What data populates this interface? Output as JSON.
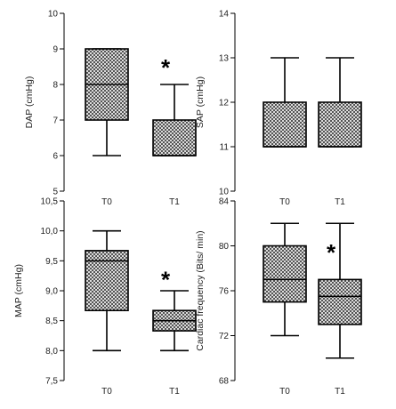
{
  "chart_data": [
    {
      "type": "box",
      "ylabel": "DAP (cmHg)",
      "categories": [
        "T0",
        "T1"
      ],
      "ylim": [
        5,
        10
      ],
      "yticks": [
        5,
        6,
        7,
        8,
        9,
        10
      ],
      "ytick_labels": [
        "5",
        "6",
        "7",
        "8",
        "9",
        "10"
      ],
      "boxes": [
        {
          "category": "T0",
          "min": 6,
          "q1": 7,
          "median": 8,
          "q3": 9,
          "max": 9
        },
        {
          "category": "T1",
          "min": 6,
          "q1": 6,
          "median": 6,
          "q3": 7,
          "max": 8
        }
      ],
      "significance": [
        {
          "category": "T1",
          "marker": "*",
          "y": 8.5
        }
      ]
    },
    {
      "type": "box",
      "ylabel": "SAP (cmHg)",
      "categories": [
        "T0",
        "T1"
      ],
      "ylim": [
        10,
        14
      ],
      "yticks": [
        10,
        11,
        12,
        13,
        14
      ],
      "ytick_labels": [
        "10",
        "11",
        "12",
        "13",
        "14"
      ],
      "boxes": [
        {
          "category": "T0",
          "min": 11,
          "q1": 11,
          "median": 11,
          "q3": 12,
          "max": 13
        },
        {
          "category": "T1",
          "min": 11,
          "q1": 11,
          "median": 11,
          "q3": 12,
          "max": 13
        }
      ],
      "significance": []
    },
    {
      "type": "box",
      "ylabel": "MAP (cmHg)",
      "categories": [
        "T0",
        "T1"
      ],
      "ylim": [
        7.5,
        10.5
      ],
      "yticks": [
        7.5,
        8.0,
        8.5,
        9.0,
        9.5,
        10.0,
        10.5
      ],
      "ytick_labels": [
        "7,5",
        "8,0",
        "8,5",
        "9,0",
        "9,5",
        "10,0",
        "10,5"
      ],
      "boxes": [
        {
          "category": "T0",
          "min": 8.0,
          "q1": 8.67,
          "median": 9.5,
          "q3": 9.67,
          "max": 10.0
        },
        {
          "category": "T1",
          "min": 8.0,
          "q1": 8.33,
          "median": 8.5,
          "q3": 8.67,
          "max": 9.0
        }
      ],
      "significance": [
        {
          "category": "T1",
          "marker": "*",
          "y": 9.2
        }
      ]
    },
    {
      "type": "box",
      "ylabel": "Cardiac frequency (Bits/ min)",
      "categories": [
        "T0",
        "T1"
      ],
      "ylim": [
        68,
        84
      ],
      "yticks": [
        68,
        72,
        76,
        80,
        84
      ],
      "ytick_labels": [
        "68",
        "72",
        "76",
        "80",
        "84"
      ],
      "boxes": [
        {
          "category": "T0",
          "min": 72,
          "q1": 75,
          "median": 77,
          "q3": 80,
          "max": 82
        },
        {
          "category": "T1",
          "min": 70,
          "q1": 73,
          "median": 75.5,
          "q3": 77,
          "max": 82
        }
      ],
      "significance": [
        {
          "category": "T1",
          "marker": "*",
          "y": 79.5
        }
      ]
    }
  ]
}
